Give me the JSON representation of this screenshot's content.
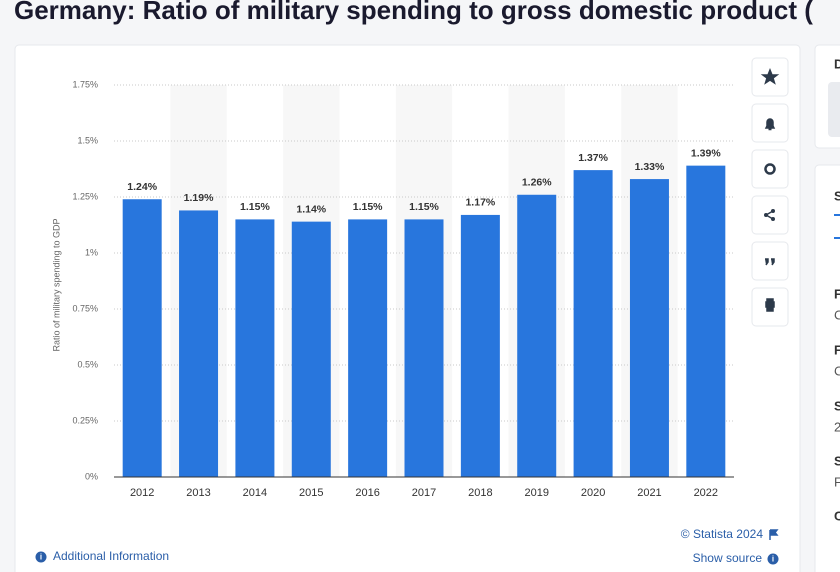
{
  "page_title": "Germany: Ratio of military spending to gross domestic product (",
  "chart_data": {
    "type": "bar",
    "categories": [
      "2012",
      "2013",
      "2014",
      "2015",
      "2016",
      "2017",
      "2018",
      "2019",
      "2020",
      "2021",
      "2022"
    ],
    "values": [
      1.24,
      1.19,
      1.15,
      1.14,
      1.15,
      1.15,
      1.17,
      1.26,
      1.37,
      1.33,
      1.39
    ],
    "value_labels": [
      "1.24%",
      "1.19%",
      "1.15%",
      "1.14%",
      "1.15%",
      "1.15%",
      "1.17%",
      "1.26%",
      "1.37%",
      "1.33%",
      "1.39%"
    ],
    "color": "#2876dd",
    "y_label": "Ratio of military spending to GDP",
    "ylim": [
      0,
      1.75
    ],
    "yticks": [
      {
        "value": 0,
        "label": "0%"
      },
      {
        "value": 0.25,
        "label": "0.25%"
      },
      {
        "value": 0.5,
        "label": "0.5%"
      },
      {
        "value": 0.75,
        "label": "0.75%"
      },
      {
        "value": 1,
        "label": "1%"
      },
      {
        "value": 1.25,
        "label": "1.25%"
      },
      {
        "value": 1.5,
        "label": "1.5%"
      },
      {
        "value": 1.75,
        "label": "1.75%"
      }
    ],
    "grid": true
  },
  "footer": {
    "copyright": "© Statista 2024",
    "show_source": "Show source",
    "additional_information": "Additional Information"
  },
  "sidebar": {
    "top_letter": "D",
    "items": [
      "S",
      "F",
      "C",
      "F",
      "C",
      "S",
      "2",
      "S",
      "F",
      "C"
    ]
  }
}
